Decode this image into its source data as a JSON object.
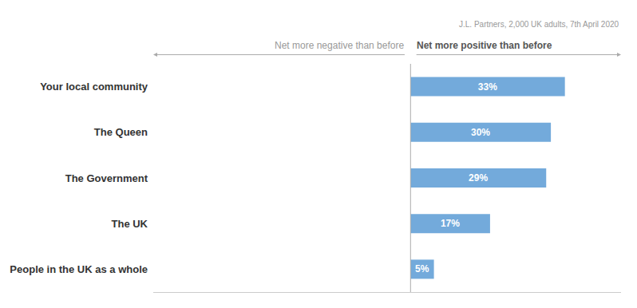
{
  "chart_data": {
    "type": "bar",
    "orientation": "horizontal",
    "categories": [
      "Your local community",
      "The Queen",
      "The Government",
      "The UK",
      "People in the UK as a whole"
    ],
    "values": [
      33,
      30,
      29,
      17,
      5
    ],
    "value_labels": [
      "33%",
      "30%",
      "29%",
      "17%",
      "5%"
    ],
    "color": "#5B9BD5",
    "xlim": [
      -55,
      45
    ],
    "grid": false,
    "data_labels": true,
    "tick_labels": "y",
    "annotations": [
      "Net more negative than before",
      "Net more positive than before",
      "J.L. Partners, 2,000 UK adults, 7th April 2020"
    ]
  }
}
